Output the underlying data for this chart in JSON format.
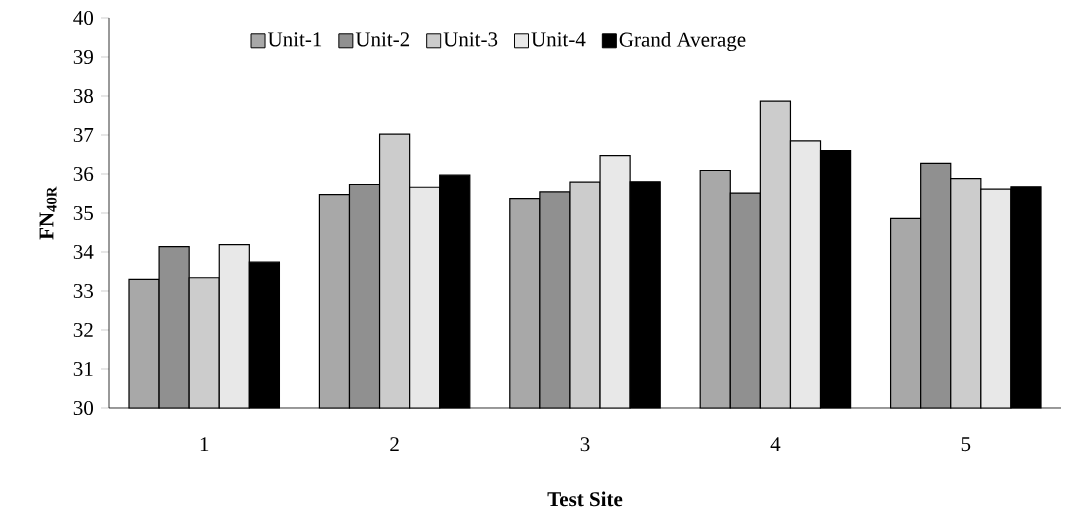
{
  "chart_data": {
    "type": "bar",
    "xlabel": "Test Site",
    "ylabel": "FN$_{40R}$",
    "categories": [
      "1",
      "2",
      "3",
      "4",
      "5"
    ],
    "series": [
      {
        "name": "Unit-1",
        "color": "#a8a8a8",
        "values": [
          33.3,
          35.47,
          35.37,
          36.09,
          34.86
        ]
      },
      {
        "name": "Unit-2",
        "color": "#909090",
        "values": [
          34.14,
          35.73,
          35.54,
          35.51,
          36.27
        ]
      },
      {
        "name": "Unit-3",
        "color": "#cccccc",
        "values": [
          33.34,
          37.02,
          35.79,
          37.87,
          35.88
        ]
      },
      {
        "name": "Unit-4",
        "color": "#e8e8e8",
        "values": [
          34.19,
          35.66,
          36.47,
          36.85,
          35.61
        ]
      },
      {
        "name": "Grand Average",
        "color": "#000000",
        "values": [
          33.74,
          35.97,
          35.8,
          36.6,
          35.67
        ]
      }
    ],
    "ylim": [
      30,
      40
    ],
    "yticks": [
      30,
      31,
      32,
      33,
      34,
      35,
      36,
      37,
      38,
      39,
      40
    ],
    "legend": "top"
  }
}
